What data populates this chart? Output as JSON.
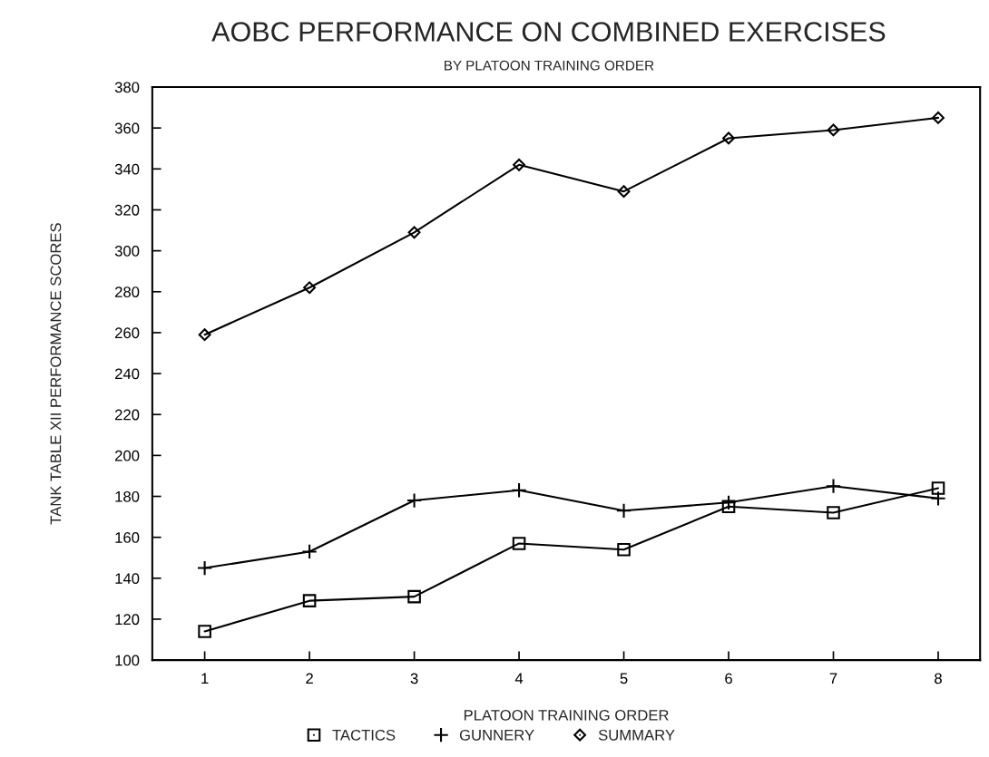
{
  "chart_data": {
    "type": "line",
    "title": "AOBC PERFORMANCE ON COMBINED EXERCISES",
    "subtitle": "BY PLATOON TRAINING ORDER",
    "xlabel": "PLATOON TRAINING ORDER",
    "ylabel": "TANK TABLE XII PERFORMANCE SCORES",
    "x": [
      1,
      2,
      3,
      4,
      5,
      6,
      7,
      8
    ],
    "series": [
      {
        "name": "TACTICS",
        "color": "#000000",
        "marker": "square",
        "values": [
          114,
          129,
          131,
          157,
          154,
          175,
          172,
          184
        ]
      },
      {
        "name": "GUNNERY",
        "color": "#000000",
        "marker": "cross",
        "values": [
          145,
          153,
          178,
          183,
          173,
          177,
          185,
          179
        ]
      },
      {
        "name": "SUMMARY",
        "color": "#000000",
        "marker": "diamond",
        "values": [
          259,
          282,
          309,
          342,
          329,
          355,
          359,
          365
        ]
      }
    ],
    "xlim": [
      0.5,
      8.4
    ],
    "xticks": [
      1,
      2,
      3,
      4,
      5,
      6,
      7,
      8
    ],
    "ylim": [
      100,
      380
    ],
    "yticks": [
      100,
      120,
      140,
      160,
      180,
      200,
      220,
      240,
      260,
      280,
      300,
      320,
      340,
      360,
      380
    ],
    "grid": false,
    "legend": "bottom",
    "line_style": "solid"
  }
}
